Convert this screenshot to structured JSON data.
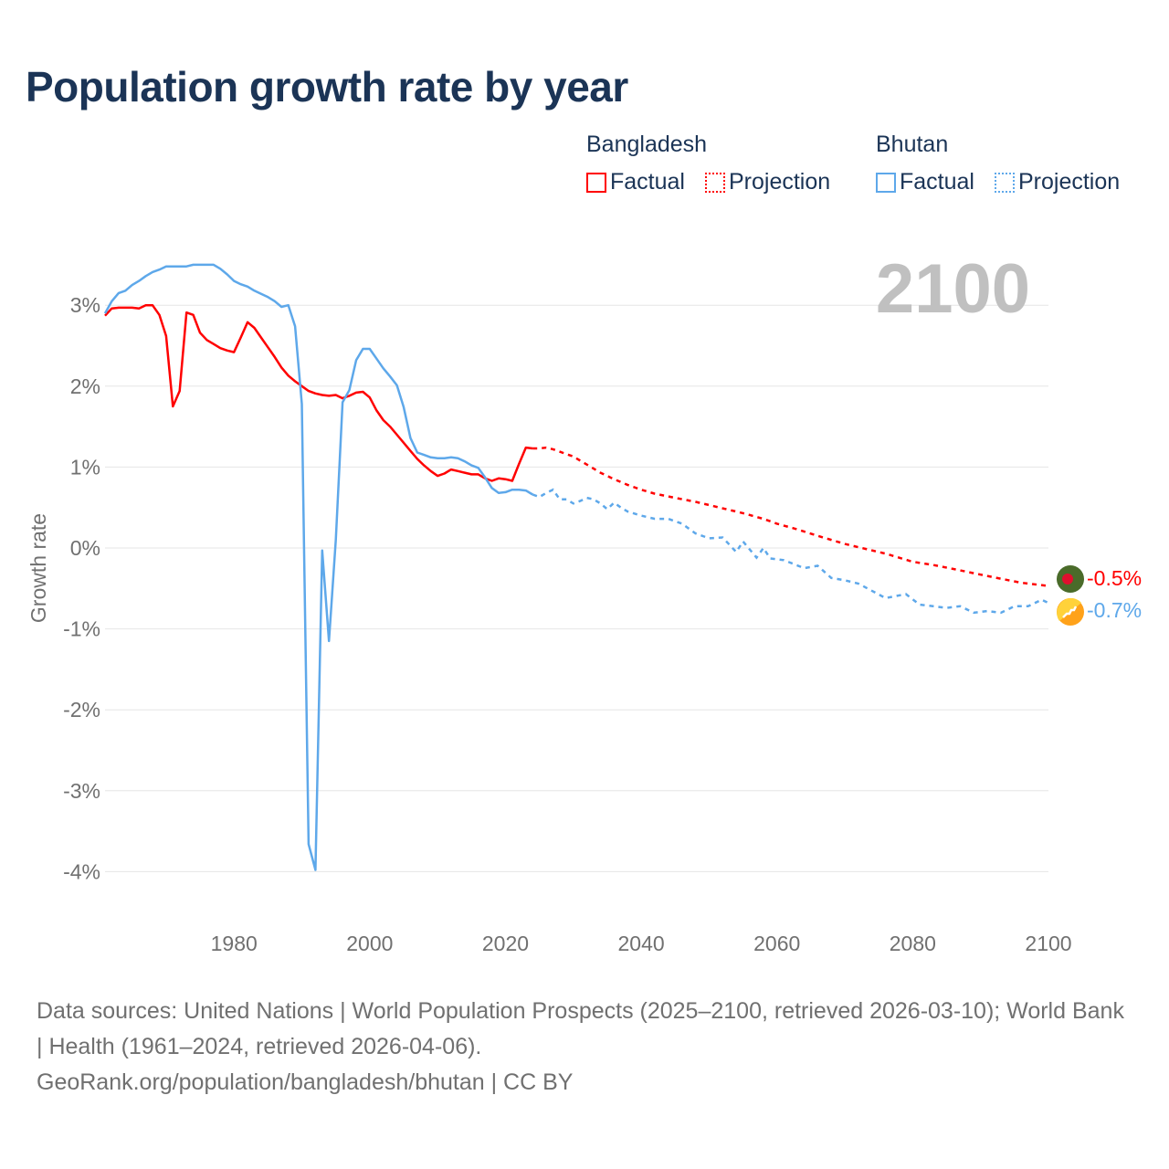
{
  "title": "Population growth rate by year",
  "legend": [
    {
      "name": "Bangladesh",
      "factual": "Factual",
      "projection": "Projection",
      "color": "#ff0000"
    },
    {
      "name": "Bhutan",
      "factual": "Factual",
      "projection": "Projection",
      "color": "#5ea8ea"
    }
  ],
  "year_watermark": "2100",
  "footer": {
    "sources": "Data sources: United Nations | World Population Prospects (2025–2100, retrieved 2026-03-10); World Bank | Health (1961–2024, retrieved 2026-04-06).",
    "credit": "GeoRank.org/population/bangladesh/bhutan | CC BY"
  },
  "chart_data": {
    "type": "line",
    "title": "Population growth rate by year",
    "xlabel": "",
    "ylabel": "Growth rate",
    "xlim": [
      1961,
      2100
    ],
    "ylim": [
      -4.5,
      3.8
    ],
    "xticks": [
      1980,
      2000,
      2020,
      2040,
      2060,
      2080,
      2100
    ],
    "yticks": [
      3,
      2,
      1,
      0,
      -1,
      -2,
      -3,
      -4
    ],
    "ytick_labels": [
      "3%",
      "2%",
      "1%",
      "0%",
      "-1%",
      "-2%",
      "-3%",
      "-4%"
    ],
    "grid": true,
    "series": [
      {
        "name": "Bangladesh",
        "color": "#ff0000",
        "end_label": "-0.5%",
        "factual": {
          "x": [
            1961,
            1962,
            1963,
            1964,
            1965,
            1966,
            1967,
            1968,
            1969,
            1970,
            1971,
            1972,
            1973,
            1974,
            1975,
            1976,
            1977,
            1978,
            1979,
            1980,
            1981,
            1982,
            1983,
            1984,
            1985,
            1986,
            1987,
            1988,
            1989,
            1990,
            1991,
            1992,
            1993,
            1994,
            1995,
            1996,
            1997,
            1998,
            1999,
            2000,
            2001,
            2002,
            2003,
            2004,
            2005,
            2006,
            2007,
            2008,
            2009,
            2010,
            2011,
            2012,
            2013,
            2014,
            2015,
            2016,
            2017,
            2018,
            2019,
            2020,
            2021,
            2022,
            2023,
            2024
          ],
          "y": [
            2.87,
            2.96,
            2.97,
            2.97,
            2.97,
            2.96,
            3.0,
            3.0,
            2.88,
            2.62,
            1.75,
            1.94,
            2.91,
            2.88,
            2.66,
            2.57,
            2.52,
            2.47,
            2.44,
            2.42,
            2.6,
            2.79,
            2.72,
            2.6,
            2.48,
            2.36,
            2.23,
            2.13,
            2.06,
            2.0,
            1.94,
            1.91,
            1.89,
            1.88,
            1.89,
            1.85,
            1.88,
            1.92,
            1.93,
            1.86,
            1.7,
            1.58,
            1.5,
            1.4,
            1.3,
            1.2,
            1.1,
            1.02,
            0.95,
            0.89,
            0.92,
            0.97,
            0.95,
            0.93,
            0.91,
            0.91,
            0.86,
            0.83,
            0.86,
            0.85,
            0.83,
            1.04,
            1.24,
            1.23
          ]
        },
        "projection": {
          "x": [
            2024,
            2025,
            2026,
            2027,
            2028,
            2030,
            2032,
            2034,
            2036,
            2038,
            2040,
            2042,
            2045,
            2048,
            2050,
            2052,
            2055,
            2058,
            2060,
            2063,
            2066,
            2070,
            2073,
            2076,
            2080,
            2083,
            2086,
            2090,
            2093,
            2096,
            2100
          ],
          "y": [
            1.23,
            1.23,
            1.24,
            1.22,
            1.19,
            1.13,
            1.03,
            0.93,
            0.85,
            0.78,
            0.72,
            0.67,
            0.62,
            0.57,
            0.53,
            0.49,
            0.43,
            0.36,
            0.3,
            0.23,
            0.15,
            0.05,
            -0.01,
            -0.07,
            -0.17,
            -0.21,
            -0.26,
            -0.33,
            -0.38,
            -0.43,
            -0.47
          ]
        }
      },
      {
        "name": "Bhutan",
        "color": "#5ea8ea",
        "end_label": "-0.7%",
        "factual": {
          "x": [
            1961,
            1962,
            1963,
            1964,
            1965,
            1966,
            1967,
            1968,
            1969,
            1970,
            1971,
            1972,
            1973,
            1974,
            1975,
            1976,
            1977,
            1978,
            1979,
            1980,
            1981,
            1982,
            1983,
            1984,
            1985,
            1986,
            1987,
            1988,
            1989,
            1990,
            1991,
            1992,
            1993,
            1994,
            1995,
            1996,
            1997,
            1998,
            1999,
            2000,
            2001,
            2002,
            2003,
            2004,
            2005,
            2006,
            2007,
            2008,
            2009,
            2010,
            2011,
            2012,
            2013,
            2014,
            2015,
            2016,
            2017,
            2018,
            2019,
            2020,
            2021,
            2022,
            2023,
            2024
          ],
          "y": [
            2.9,
            3.05,
            3.15,
            3.18,
            3.25,
            3.3,
            3.36,
            3.41,
            3.44,
            3.48,
            3.48,
            3.48,
            3.48,
            3.5,
            3.5,
            3.5,
            3.5,
            3.45,
            3.38,
            3.3,
            3.26,
            3.23,
            3.18,
            3.14,
            3.1,
            3.05,
            2.98,
            3.0,
            2.74,
            1.78,
            -3.66,
            -3.98,
            -0.03,
            -1.15,
            0.1,
            1.8,
            1.95,
            2.32,
            2.46,
            2.46,
            2.34,
            2.22,
            2.12,
            2.01,
            1.74,
            1.36,
            1.18,
            1.15,
            1.12,
            1.11,
            1.11,
            1.12,
            1.11,
            1.07,
            1.02,
            0.99,
            0.87,
            0.74,
            0.68,
            0.69,
            0.72,
            0.72,
            0.71,
            0.66
          ]
        },
        "projection": {
          "x": [
            2024,
            2025,
            2026,
            2027,
            2028,
            2029,
            2030,
            2031,
            2032,
            2033,
            2034,
            2035,
            2036,
            2037,
            2038,
            2040,
            2042,
            2044,
            2046,
            2048,
            2050,
            2052,
            2054,
            2055,
            2057,
            2058,
            2059,
            2061,
            2064,
            2066,
            2068,
            2070,
            2072,
            2076,
            2079,
            2081,
            2083,
            2085,
            2087,
            2089,
            2091,
            2093,
            2095,
            2097,
            2099,
            2100
          ],
          "y": [
            0.66,
            0.63,
            0.68,
            0.72,
            0.6,
            0.6,
            0.55,
            0.58,
            0.62,
            0.6,
            0.55,
            0.48,
            0.56,
            0.5,
            0.45,
            0.4,
            0.36,
            0.36,
            0.3,
            0.18,
            0.12,
            0.13,
            -0.05,
            0.08,
            -0.12,
            0.0,
            -0.13,
            -0.15,
            -0.25,
            -0.22,
            -0.37,
            -0.4,
            -0.44,
            -0.62,
            -0.57,
            -0.7,
            -0.72,
            -0.74,
            -0.72,
            -0.8,
            -0.78,
            -0.8,
            -0.72,
            -0.72,
            -0.64,
            -0.68
          ]
        }
      }
    ]
  }
}
